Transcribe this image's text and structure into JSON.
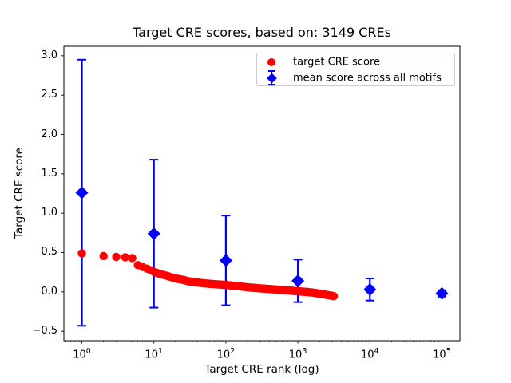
{
  "chart_data": {
    "type": "scatter",
    "title": "Target CRE scores, based on: 3149 CREs",
    "xlabel": "Target CRE rank (log)",
    "ylabel": "Target CRE score",
    "x_scale": "log10",
    "xlim_log10": [
      -0.25,
      5.25
    ],
    "ylim": [
      -0.62,
      3.12
    ],
    "x_tick_exponents": [
      0,
      1,
      2,
      3,
      4,
      5
    ],
    "y_ticks": [
      -0.5,
      0.0,
      0.5,
      1.0,
      1.5,
      2.0,
      2.5,
      3.0
    ],
    "y_tick_labels": [
      "−0.5",
      "0.0",
      "0.5",
      "1.0",
      "1.5",
      "2.0",
      "2.5",
      "3.0"
    ],
    "grid": false,
    "colors": {
      "target_score": "#ff0000",
      "mean_score": "#0000ff",
      "axis": "#000000",
      "legend_border": "#cccccc"
    },
    "legend": {
      "position": "upper right",
      "entries": [
        {
          "label": "target CRE score",
          "marker": "circle",
          "color": "#ff0000"
        },
        {
          "label": "mean score across all motifs",
          "marker": "diamond_with_errorbar",
          "color": "#0000ff"
        }
      ]
    },
    "series": [
      {
        "name": "target CRE score",
        "marker": "circle",
        "color": "#ff0000",
        "n_points": 3149,
        "points_sampled_rank_score": [
          [
            1,
            0.49
          ],
          [
            2,
            0.455
          ],
          [
            3,
            0.445
          ],
          [
            4,
            0.44
          ],
          [
            5,
            0.43
          ],
          [
            6,
            0.34
          ],
          [
            7,
            0.315
          ],
          [
            8,
            0.295
          ],
          [
            9,
            0.275
          ],
          [
            10,
            0.255
          ],
          [
            12,
            0.23
          ],
          [
            15,
            0.205
          ],
          [
            20,
            0.17
          ],
          [
            25,
            0.155
          ],
          [
            30,
            0.135
          ],
          [
            40,
            0.12
          ],
          [
            50,
            0.108
          ],
          [
            70,
            0.098
          ],
          [
            100,
            0.088
          ],
          [
            150,
            0.072
          ],
          [
            200,
            0.058
          ],
          [
            300,
            0.045
          ],
          [
            500,
            0.03
          ],
          [
            700,
            0.02
          ],
          [
            1000,
            0.008
          ],
          [
            1500,
            -0.005
          ],
          [
            2000,
            -0.022
          ],
          [
            2500,
            -0.038
          ],
          [
            3000,
            -0.05
          ],
          [
            3149,
            -0.055
          ]
        ]
      },
      {
        "name": "mean score across all motifs",
        "marker": "diamond",
        "color": "#0000ff",
        "x": [
          1,
          10,
          100,
          1000,
          10000,
          100000
        ],
        "mean": [
          1.26,
          0.74,
          0.4,
          0.14,
          0.03,
          -0.02
        ],
        "err": [
          1.69,
          0.94,
          0.57,
          0.27,
          0.14,
          0.04
        ]
      }
    ]
  }
}
